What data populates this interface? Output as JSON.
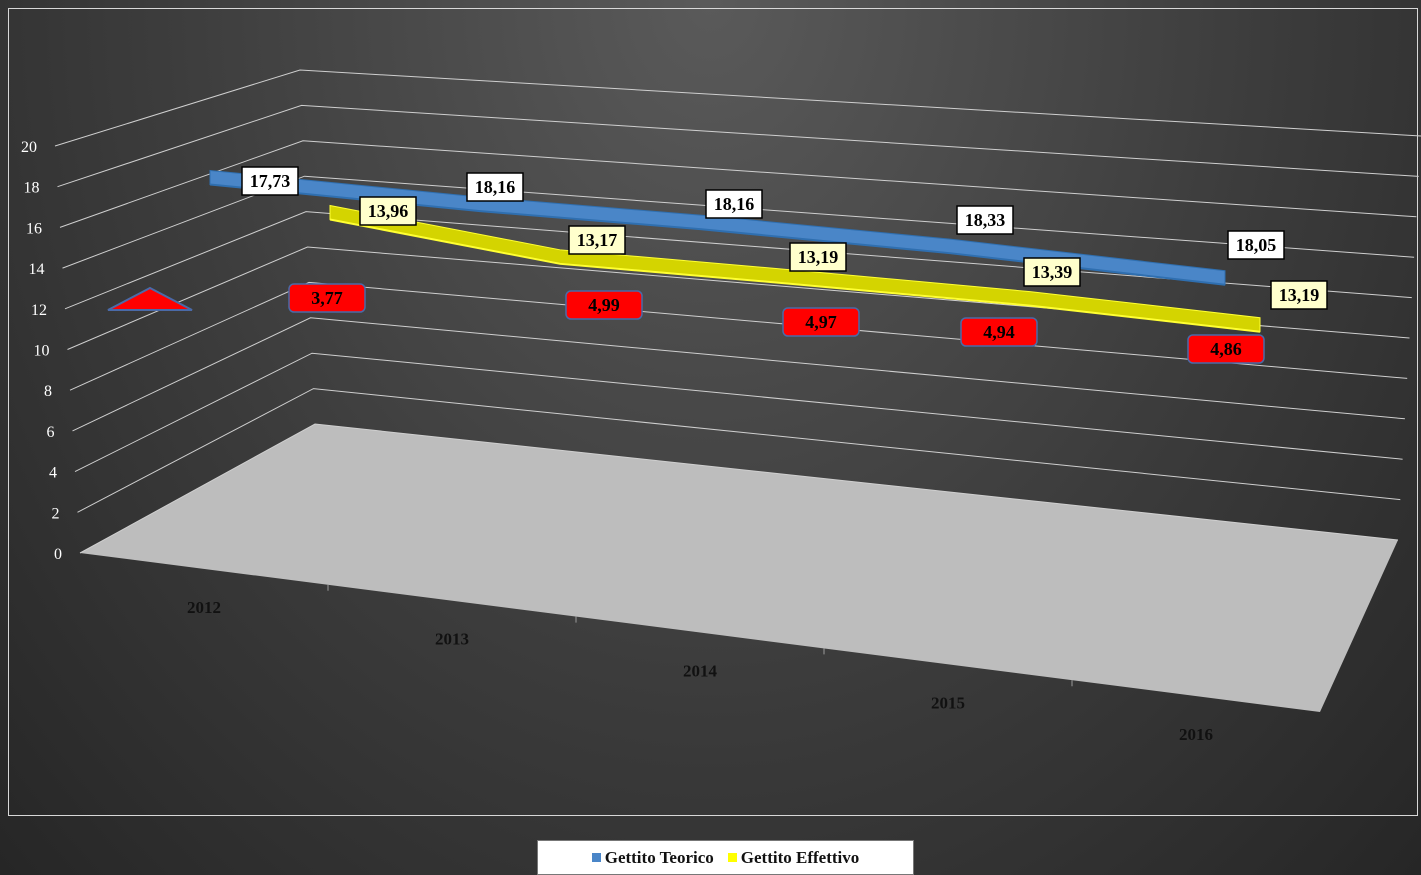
{
  "chart_data": {
    "type": "line",
    "categories": [
      "2012",
      "2013",
      "2014",
      "2015",
      "2016"
    ],
    "ylim": [
      0,
      20
    ],
    "yticks": [
      0,
      2,
      4,
      6,
      8,
      10,
      12,
      14,
      16,
      18,
      20
    ],
    "series": [
      {
        "name": "Gettito Teorico",
        "values": [
          17.73,
          18.16,
          18.16,
          18.33,
          18.05
        ],
        "labels": [
          "17,73",
          "18,16",
          "18,16",
          "18,33",
          "18,05"
        ],
        "color": "#4a86c8"
      },
      {
        "name": "Gettito Effettivo",
        "values": [
          13.96,
          13.17,
          13.19,
          13.39,
          13.19
        ],
        "labels": [
          "13,96",
          "13,17",
          "13,19",
          "13,39",
          "13,19"
        ],
        "color": "#d4d400"
      },
      {
        "name": "",
        "values": [
          3.77,
          4.99,
          4.97,
          4.94,
          4.86
        ],
        "labels": [
          "3,77",
          "4,99",
          "4,97",
          "4,94",
          "4,86"
        ],
        "color": "#ff0000"
      }
    ],
    "legend": {
      "position": "bottom",
      "entries": [
        "Gettito Teorico",
        "Gettito Effettivo"
      ]
    },
    "grid": true,
    "colors": {
      "teorico": "#4a86c8",
      "effettivo": "#d4d400",
      "gap": "#ff0000",
      "floor": "#bdbdbd"
    }
  }
}
